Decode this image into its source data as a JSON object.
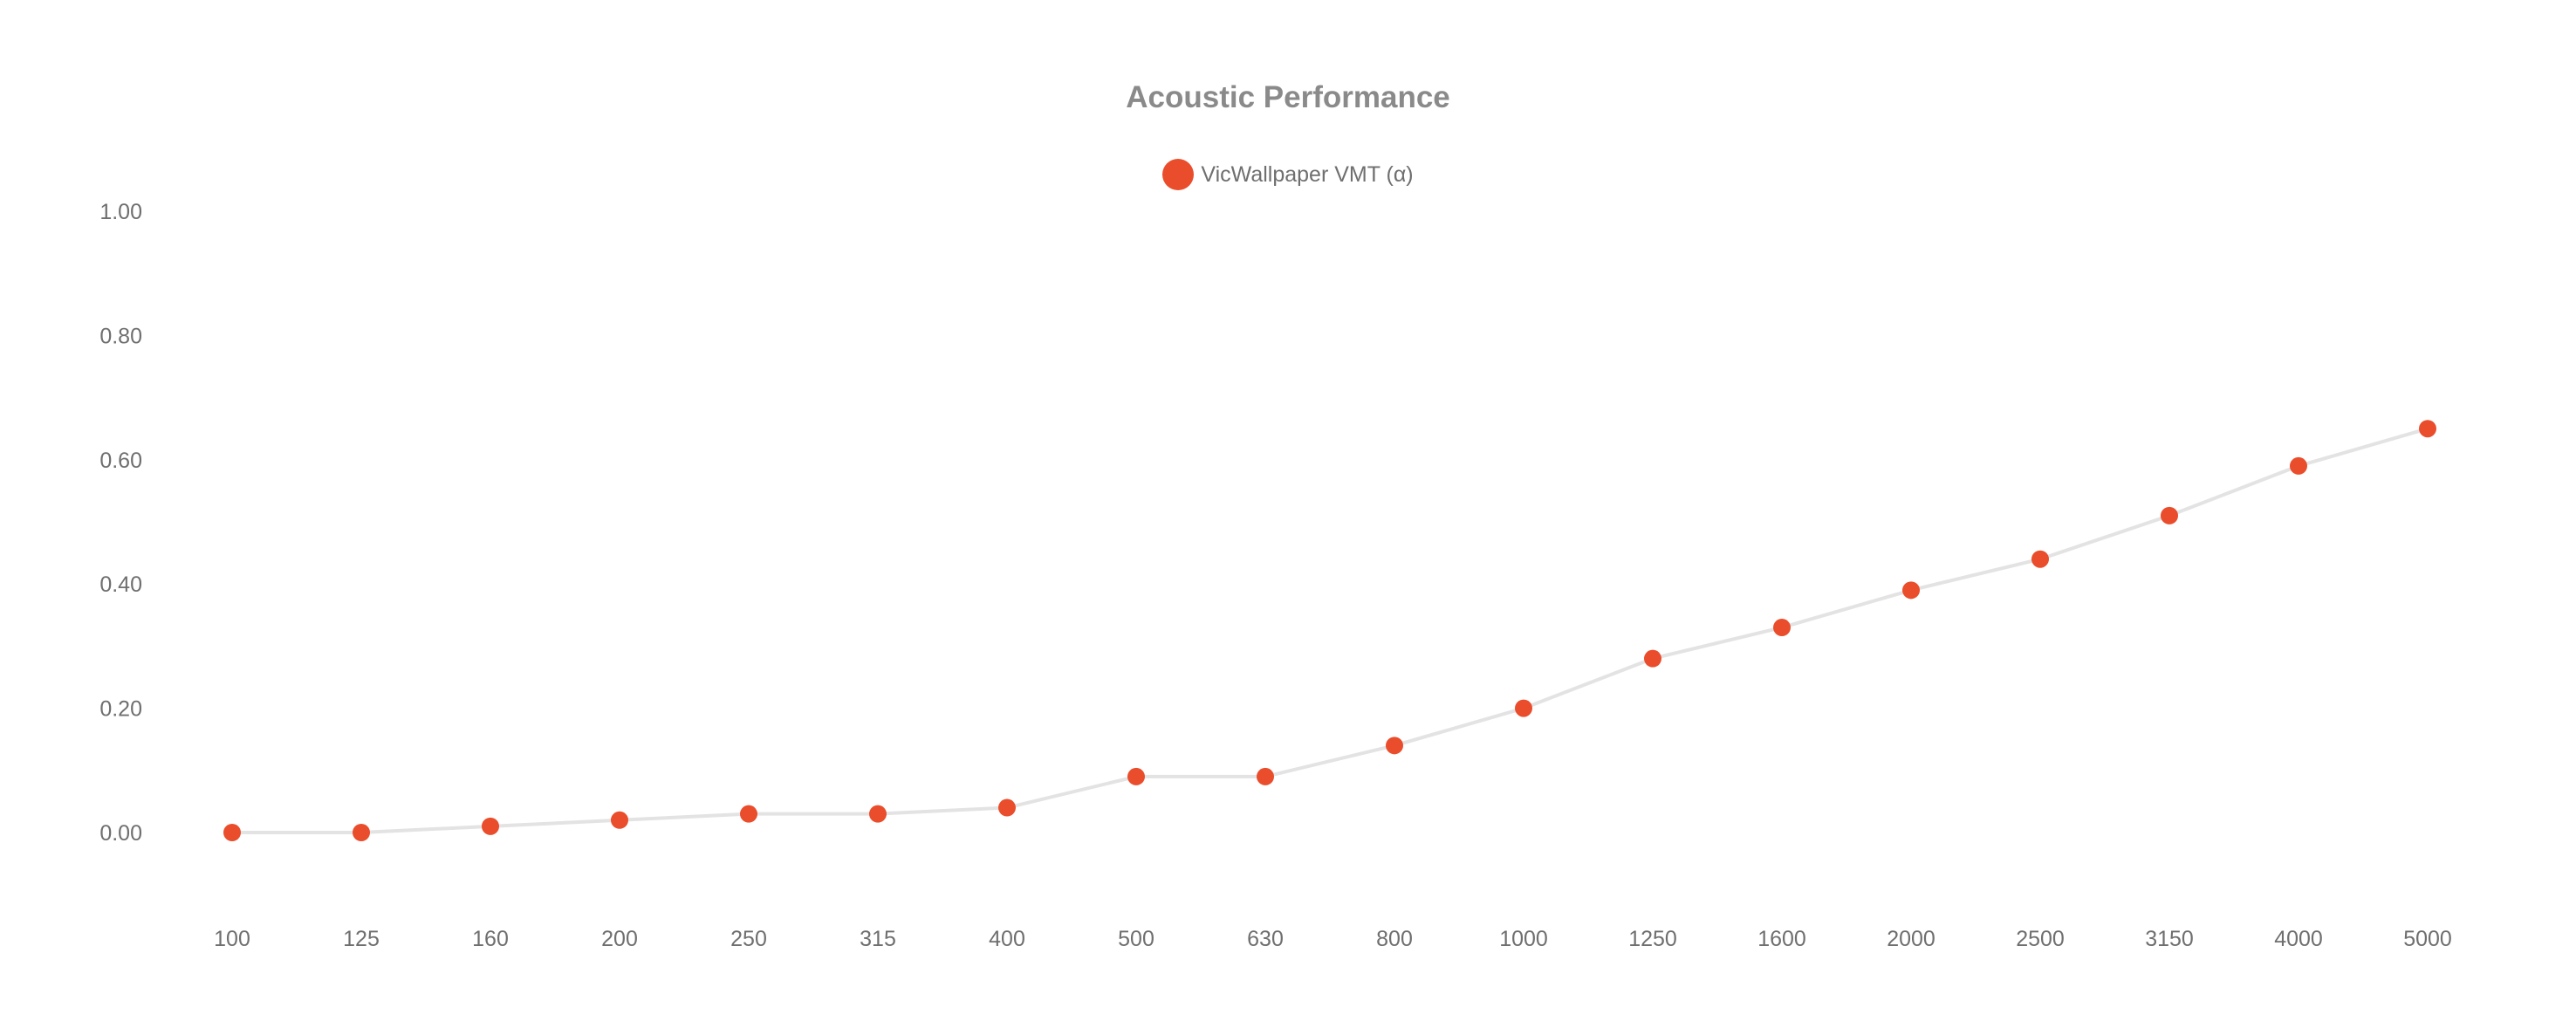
{
  "chart_data": {
    "type": "line",
    "title": "Acoustic Performance",
    "xlabel": "",
    "ylabel": "",
    "categories": [
      "100",
      "125",
      "160",
      "200",
      "250",
      "315",
      "400",
      "500",
      "630",
      "800",
      "1000",
      "1250",
      "1600",
      "2000",
      "2500",
      "3150",
      "4000",
      "5000"
    ],
    "series": [
      {
        "name": "VicWallpaper VMT (α)",
        "values": [
          0.0,
          0.0,
          0.01,
          0.02,
          0.03,
          0.03,
          0.04,
          0.09,
          0.09,
          0.14,
          0.2,
          0.28,
          0.33,
          0.39,
          0.44,
          0.51,
          0.59,
          0.65
        ],
        "color": "#ea4d2c"
      }
    ],
    "ylim": [
      0,
      1
    ],
    "yticks": [
      "1.00",
      "0.80",
      "0.60",
      "0.40",
      "0.20",
      "0.00"
    ],
    "line_color": "#e3e3e3",
    "grid": false,
    "legend_position": "top-center"
  }
}
